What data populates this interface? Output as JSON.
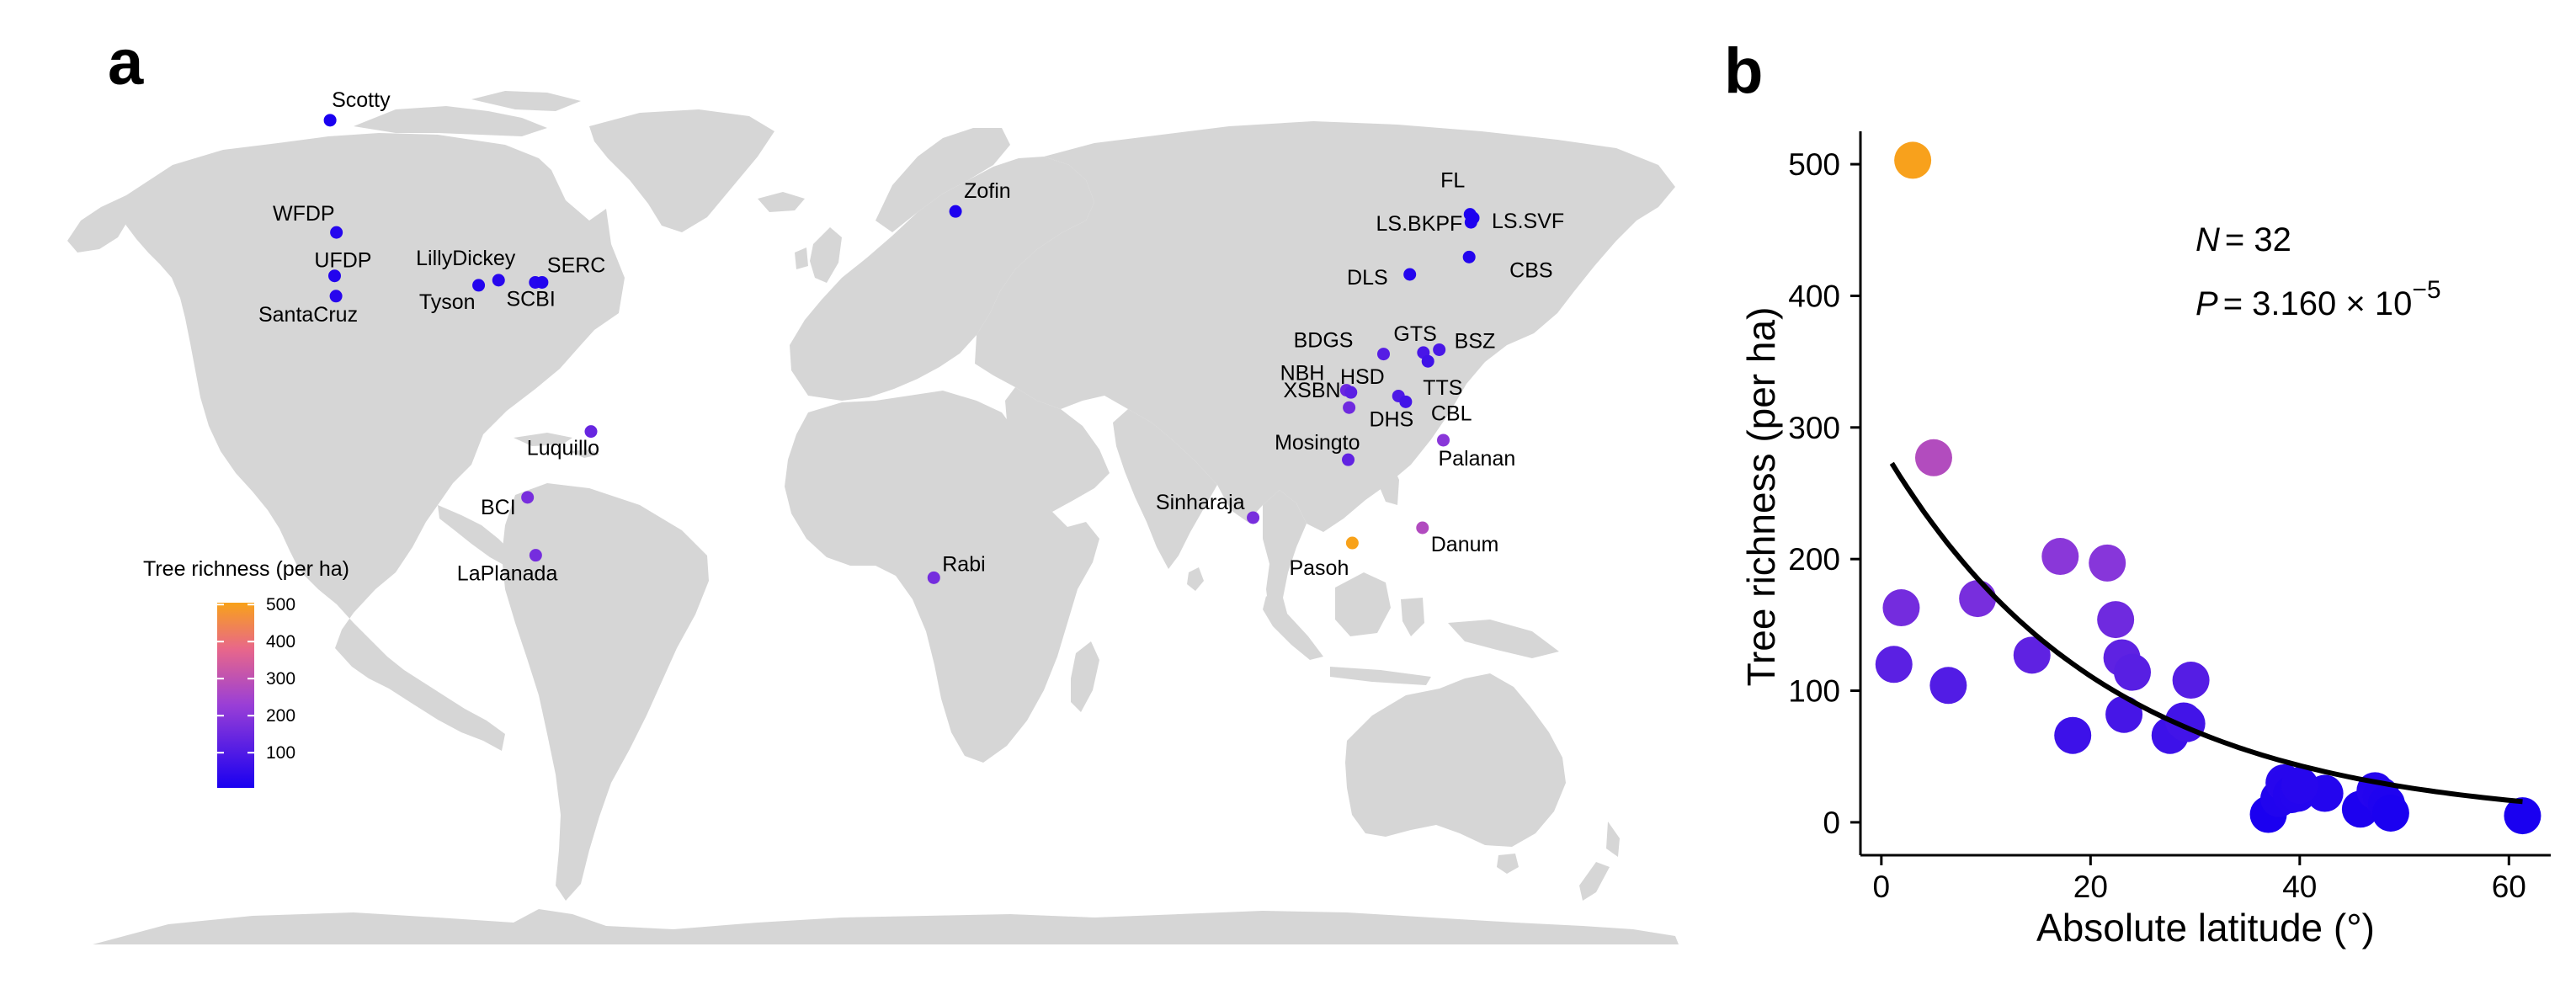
{
  "panels": {
    "a": {
      "letter": "a"
    },
    "b": {
      "letter": "b"
    }
  },
  "colors": {
    "land": "#d6d6d6",
    "low": "#1a00f0",
    "mid": "#9a3fd6",
    "high": "#f8a21a"
  },
  "chart_data": [
    {
      "type": "scatter",
      "subtype": "map",
      "legend": {
        "title": "Tree richness (per ha)",
        "ticks": [
          100,
          200,
          300,
          400,
          500
        ],
        "range": [
          5,
          505
        ],
        "placement": "bottom-left"
      },
      "sites": [
        {
          "name": "Scotty",
          "lon": -123.4,
          "lat": 61.3,
          "richness": 5
        },
        {
          "name": "WFDP",
          "lon": -122.0,
          "lat": 45.8,
          "richness": 25
        },
        {
          "name": "UFDP",
          "lon": -122.4,
          "lat": 39.8,
          "richness": 20
        },
        {
          "name": "SantaCruz",
          "lon": -122.1,
          "lat": 37.0,
          "richness": 30
        },
        {
          "name": "LillyDickey",
          "lon": -86.2,
          "lat": 39.2,
          "richness": 30
        },
        {
          "name": "Tyson",
          "lon": -90.6,
          "lat": 38.5,
          "richness": 20
        },
        {
          "name": "SCBI",
          "lon": -78.1,
          "lat": 38.9,
          "richness": 25
        },
        {
          "name": "SERC",
          "lon": -76.6,
          "lat": 38.9,
          "richness": 20
        },
        {
          "name": "Luquillo",
          "lon": -65.8,
          "lat": 18.3,
          "richness": 140
        },
        {
          "name": "BCI",
          "lon": -79.8,
          "lat": 9.2,
          "richness": 170
        },
        {
          "name": "LaPlanada",
          "lon": -78.0,
          "lat": 1.2,
          "richness": 165
        },
        {
          "name": "Zofin",
          "lon": 14.7,
          "lat": 48.7,
          "richness": 10
        },
        {
          "name": "Rabi",
          "lon": 9.9,
          "lat": -1.9,
          "richness": 165
        },
        {
          "name": "Sinharaja",
          "lon": 80.4,
          "lat": 6.4,
          "richness": 170
        },
        {
          "name": "Mosingto",
          "lon": 101.4,
          "lat": 14.4,
          "richness": 130
        },
        {
          "name": "Pasoh",
          "lon": 102.3,
          "lat": 2.9,
          "richness": 505
        },
        {
          "name": "Danum",
          "lon": 117.8,
          "lat": 5.0,
          "richness": 275
        },
        {
          "name": "Palanan",
          "lon": 122.4,
          "lat": 17.1,
          "richness": 200
        },
        {
          "name": "XSBN",
          "lon": 101.6,
          "lat": 21.6,
          "richness": 155
        },
        {
          "name": "NBH",
          "lon": 101.0,
          "lat": 24.0,
          "richness": 145
        },
        {
          "name": "HSD",
          "lon": 102.0,
          "lat": 23.7,
          "richness": 120
        },
        {
          "name": "DHS",
          "lon": 112.5,
          "lat": 23.2,
          "richness": 95
        },
        {
          "name": "CBL",
          "lon": 114.1,
          "lat": 22.4,
          "richness": 75
        },
        {
          "name": "BDGS",
          "lon": 109.2,
          "lat": 29.0,
          "richness": 110
        },
        {
          "name": "GTS",
          "lon": 118.0,
          "lat": 29.2,
          "richness": 85
        },
        {
          "name": "TTS",
          "lon": 119.0,
          "lat": 28.0,
          "richness": 70
        },
        {
          "name": "BSZ",
          "lon": 121.5,
          "lat": 29.6,
          "richness": 90
        },
        {
          "name": "DLS",
          "lon": 115.0,
          "lat": 40.0,
          "richness": 25
        },
        {
          "name": "CBS",
          "lon": 128.1,
          "lat": 42.4,
          "richness": 20
        },
        {
          "name": "LS.BKPF",
          "lon": 128.5,
          "lat": 47.2,
          "richness": 15
        },
        {
          "name": "LS.SVF",
          "lon": 129.0,
          "lat": 47.8,
          "richness": 12
        },
        {
          "name": "FL",
          "lon": 128.3,
          "lat": 48.3,
          "richness": 10
        }
      ]
    },
    {
      "type": "scatter",
      "xlabel": "Absolute latitude (°)",
      "ylabel": "Tree richness (per ha)",
      "xlim": [
        -2,
        64
      ],
      "ylim": [
        -25,
        525
      ],
      "xticks": [
        0,
        20,
        40,
        60
      ],
      "yticks": [
        0,
        100,
        200,
        300,
        400,
        500
      ],
      "grid": false,
      "annotations": {
        "n_label": "N",
        "n_value": "= 32",
        "p_label": "P",
        "p_value": "= 3.160 × 10",
        "p_exponent": "−5"
      },
      "points": [
        {
          "x": 3.0,
          "y": 503
        },
        {
          "x": 5.0,
          "y": 277
        },
        {
          "x": 1.9,
          "y": 163
        },
        {
          "x": 1.2,
          "y": 120
        },
        {
          "x": 6.4,
          "y": 104
        },
        {
          "x": 9.2,
          "y": 170
        },
        {
          "x": 14.4,
          "y": 127
        },
        {
          "x": 17.1,
          "y": 202
        },
        {
          "x": 18.3,
          "y": 66
        },
        {
          "x": 21.6,
          "y": 197
        },
        {
          "x": 22.4,
          "y": 154
        },
        {
          "x": 23.0,
          "y": 125
        },
        {
          "x": 23.2,
          "y": 82
        },
        {
          "x": 24.0,
          "y": 114
        },
        {
          "x": 27.6,
          "y": 66
        },
        {
          "x": 28.9,
          "y": 77
        },
        {
          "x": 29.2,
          "y": 75
        },
        {
          "x": 29.6,
          "y": 108
        },
        {
          "x": 37.0,
          "y": 6
        },
        {
          "x": 38.0,
          "y": 18
        },
        {
          "x": 38.5,
          "y": 30
        },
        {
          "x": 38.9,
          "y": 28
        },
        {
          "x": 39.2,
          "y": 21
        },
        {
          "x": 39.8,
          "y": 22
        },
        {
          "x": 42.4,
          "y": 22
        },
        {
          "x": 45.8,
          "y": 10
        },
        {
          "x": 47.2,
          "y": 24
        },
        {
          "x": 47.8,
          "y": 20
        },
        {
          "x": 48.3,
          "y": 14
        },
        {
          "x": 48.7,
          "y": 7
        },
        {
          "x": 61.3,
          "y": 5
        },
        {
          "x": 40.0,
          "y": 28
        }
      ],
      "fit": {
        "type": "exponential",
        "a": 286,
        "b": -0.0473,
        "x_range": [
          1,
          61.3
        ]
      }
    }
  ]
}
